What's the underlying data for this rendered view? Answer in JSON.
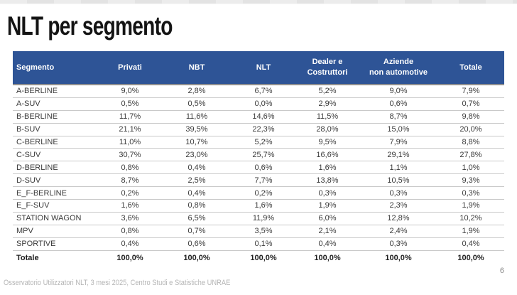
{
  "slide": {
    "title": "NLT per segmento",
    "footer": "Osservatorio Utilizzatori NLT, 3 mesi 2025, Centro Studi e Statistiche UNRAE",
    "page_number": "6"
  },
  "colors": {
    "header_bg": "#2E5496",
    "header_text": "#FFFFFF",
    "row_border": "#C9C9C9",
    "body_text": "#3A3A3A",
    "footer_text": "#B5B5B5"
  },
  "table": {
    "columns": [
      "Segmento",
      "Privati",
      "NBT",
      "NLT",
      "Dealer e\nCostruttori",
      "Aziende\nnon automotive",
      "Totale"
    ],
    "rows": [
      [
        "A-BERLINE",
        "9,0%",
        "2,8%",
        "6,7%",
        "5,2%",
        "9,0%",
        "7,9%"
      ],
      [
        "A-SUV",
        "0,5%",
        "0,5%",
        "0,0%",
        "2,9%",
        "0,6%",
        "0,7%"
      ],
      [
        "B-BERLINE",
        "11,7%",
        "11,6%",
        "14,6%",
        "11,5%",
        "8,7%",
        "9,8%"
      ],
      [
        "B-SUV",
        "21,1%",
        "39,5%",
        "22,3%",
        "28,0%",
        "15,0%",
        "20,0%"
      ],
      [
        "C-BERLINE",
        "11,0%",
        "10,7%",
        "5,2%",
        "9,5%",
        "7,9%",
        "8,8%"
      ],
      [
        "C-SUV",
        "30,7%",
        "23,0%",
        "25,7%",
        "16,6%",
        "29,1%",
        "27,8%"
      ],
      [
        "D-BERLINE",
        "0,8%",
        "0,4%",
        "0,6%",
        "1,6%",
        "1,1%",
        "1,0%"
      ],
      [
        "D-SUV",
        "8,7%",
        "2,5%",
        "7,7%",
        "13,8%",
        "10,5%",
        "9,3%"
      ],
      [
        "E_F-BERLINE",
        "0,2%",
        "0,4%",
        "0,2%",
        "0,3%",
        "0,3%",
        "0,3%"
      ],
      [
        "E_F-SUV",
        "1,6%",
        "0,8%",
        "1,6%",
        "1,9%",
        "2,3%",
        "1,9%"
      ],
      [
        "STATION WAGON",
        "3,6%",
        "6,5%",
        "11,9%",
        "6,0%",
        "12,8%",
        "10,2%"
      ],
      [
        "MPV",
        "0,8%",
        "0,7%",
        "3,5%",
        "2,1%",
        "2,4%",
        "1,9%"
      ],
      [
        "SPORTIVE",
        "0,4%",
        "0,6%",
        "0,1%",
        "0,4%",
        "0,3%",
        "0,4%"
      ]
    ],
    "total_row": [
      "Totale",
      "100,0%",
      "100,0%",
      "100,0%",
      "100,0%",
      "100,0%",
      "100,0%"
    ]
  }
}
